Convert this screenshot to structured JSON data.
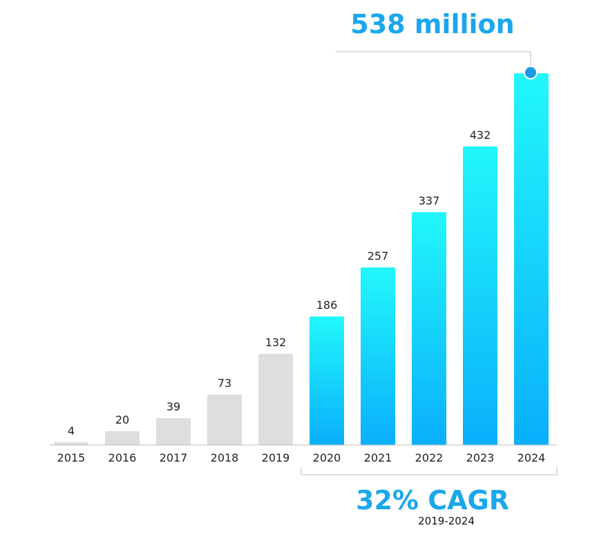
{
  "chart_data": {
    "type": "bar",
    "title": "538 million",
    "categories": [
      "2015",
      "2016",
      "2017",
      "2018",
      "2019",
      "2020",
      "2021",
      "2022",
      "2023",
      "2024"
    ],
    "values": [
      4,
      20,
      39,
      73,
      132,
      186,
      257,
      337,
      432,
      null
    ],
    "value_labels": [
      "4",
      "20",
      "39",
      "73",
      "132",
      "186",
      "257",
      "337",
      "432",
      ""
    ],
    "final_value": 538,
    "highlight_from_index": 5,
    "ylim": [
      0,
      538
    ],
    "xlabel": "",
    "ylabel": "",
    "grid": false,
    "annotation": {
      "headline": "32% CAGR",
      "period": "2019-2024"
    }
  },
  "colors": {
    "accent": "#1aa7ec",
    "grey_bar": "#dedede",
    "gradient_top": "#22f7fb",
    "gradient_bottom": "#0aaffb",
    "axis": "#bbbbbb",
    "marker": "#1a9ae6"
  }
}
